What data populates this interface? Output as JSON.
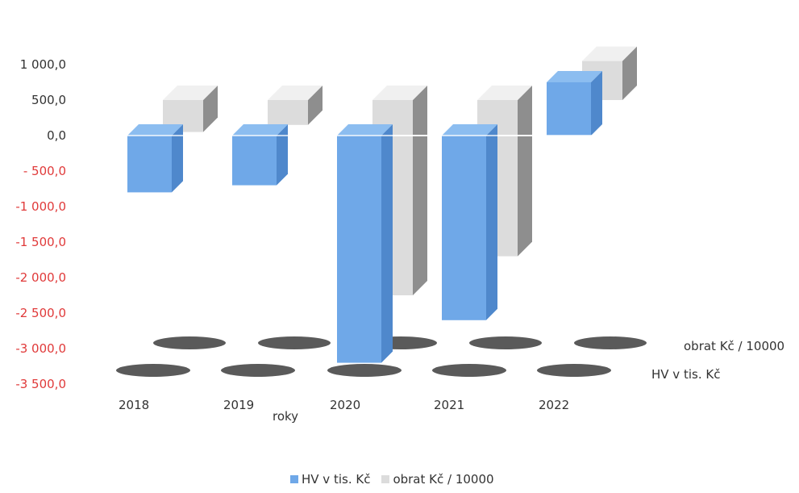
{
  "chart_data": {
    "type": "bar",
    "categories": [
      "2018",
      "2019",
      "2020",
      "2021",
      "2022"
    ],
    "series": [
      {
        "name": "HV v tis. Kč",
        "values": [
          -800,
          -700,
          -3200,
          -2600,
          750
        ]
      },
      {
        "name": "obrat Kč / 10000",
        "values": [
          -450,
          -350,
          -2750,
          -2200,
          550
        ]
      }
    ],
    "xlabel": "roky",
    "ylabel": "",
    "ylim": [
      -3500,
      1000
    ],
    "yticks": [
      "1 000,0",
      "500,0",
      "0,0",
      "- 500,0",
      "-1 000,0",
      "-1 500,0",
      "-2 000,0",
      "-2 500,0",
      "-3 000,0",
      "-3 500,0"
    ],
    "ytick_values": [
      1000,
      500,
      0,
      -500,
      -1000,
      -1500,
      -2000,
      -2500,
      -3000,
      -3500
    ],
    "colors": {
      "hv": "#6fa8e8",
      "obrat": "#dcdcdc",
      "negative_tick": "#e03a3a",
      "positive_tick": "#333333"
    },
    "legend_position": "bottom"
  }
}
